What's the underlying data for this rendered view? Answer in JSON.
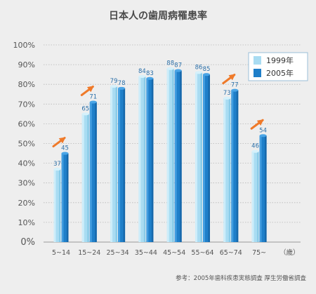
{
  "chart_data": {
    "type": "bar",
    "title": "日本人の歯周病罹患率",
    "categories": [
      "5~14",
      "15~24",
      "25~34",
      "35~44",
      "45~54",
      "55~64",
      "65~74",
      "75~"
    ],
    "x_unit": "（歳）",
    "series": [
      {
        "name": "1999年",
        "values": [
          37,
          65,
          79,
          84,
          88,
          86,
          73,
          46
        ],
        "color": "#a9dcf2"
      },
      {
        "name": "2005年",
        "values": [
          45,
          71,
          78,
          83,
          87,
          85,
          77,
          54
        ],
        "color": "#1f7fc9"
      }
    ],
    "ylim": [
      0,
      100
    ],
    "yticks": [
      "100%",
      "90%",
      "80%",
      "70%",
      "60%",
      "50%",
      "40%",
      "30%",
      "20%",
      "10%",
      "0%"
    ],
    "grid": true,
    "legend_position": "top-right",
    "increase_arrows": [
      "5~14",
      "15~24",
      "65~74",
      "75~"
    ],
    "arrow_color": "#ef7a2a",
    "source": "参考：2005年歯科疾患実態調査 厚生労働省調査"
  }
}
